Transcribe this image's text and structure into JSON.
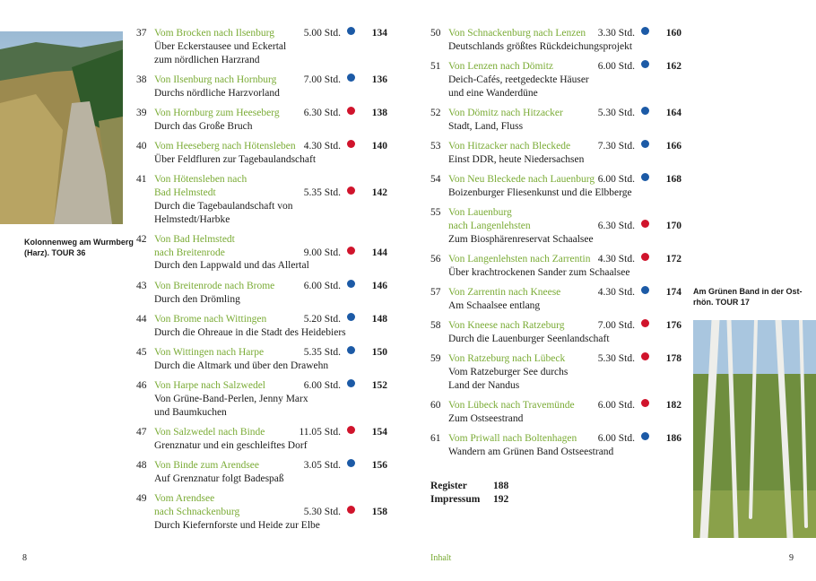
{
  "left_caption": [
    "Kolonnenweg am Wurmberg",
    "(Harz). TOUR 36"
  ],
  "right_caption": [
    "Am Grünen Band in der Ost-",
    "rhön. TOUR 17"
  ],
  "left_column": [
    {
      "number": "37",
      "title": [
        "Vom Brocken nach Ilsenburg"
      ],
      "duration": "5.00 Std.",
      "dot": "#1c5aa6",
      "page": "134",
      "description": [
        "Über Eckerstausee und Eckertal",
        "zum nördlichen Harzrand"
      ]
    },
    {
      "number": "38",
      "title": [
        "Von Ilsenburg nach Hornburg"
      ],
      "duration": "7.00 Std.",
      "dot": "#1c5aa6",
      "page": "136",
      "description": [
        "Durchs nördliche Harzvorland"
      ]
    },
    {
      "number": "39",
      "title": [
        "Von Hornburg zum Heeseberg"
      ],
      "duration": "6.30 Std.",
      "dot": "#d0142c",
      "page": "138",
      "description": [
        "Durch das Große Bruch"
      ]
    },
    {
      "number": "40",
      "title": [
        "Vom Heeseberg nach Hötensleben"
      ],
      "duration": "4.30 Std.",
      "dot": "#d0142c",
      "page": "140",
      "description": [
        "Über Feldfluren zur Tagebaulandschaft"
      ]
    },
    {
      "number": "41",
      "title": [
        "Von Hötensleben nach",
        "Bad Helmstedt"
      ],
      "duration": "5.35 Std.",
      "dot": "#d0142c",
      "page": "142",
      "description": [
        "Durch die Tagebaulandschaft von",
        "Helmstedt/Harbke"
      ]
    },
    {
      "number": "42",
      "title": [
        "Von Bad Helmstedt",
        "nach Breitenrode"
      ],
      "duration": "9.00 Std.",
      "dot": "#d0142c",
      "page": "144",
      "description": [
        "Durch den Lappwald und das Allertal"
      ]
    },
    {
      "number": "43",
      "title": [
        "Von Breitenrode nach Brome"
      ],
      "duration": "6.00 Std.",
      "dot": "#1c5aa6",
      "page": "146",
      "description": [
        "Durch den Drömling"
      ]
    },
    {
      "number": "44",
      "title": [
        "Von Brome nach Wittingen"
      ],
      "duration": "5.20 Std.",
      "dot": "#1c5aa6",
      "page": "148",
      "description": [
        "Durch die Ohreaue in die Stadt des Heidebiers"
      ]
    },
    {
      "number": "45",
      "title": [
        "Von Wittingen nach Harpe"
      ],
      "duration": "5.35 Std.",
      "dot": "#1c5aa6",
      "page": "150",
      "description": [
        "Durch die Altmark und über den Drawehn"
      ]
    },
    {
      "number": "46",
      "title": [
        "Von Harpe nach Salzwedel"
      ],
      "duration": "6.00 Std.",
      "dot": "#1c5aa6",
      "page": "152",
      "description": [
        "Von Grüne-Band-Perlen, Jenny Marx",
        "und Baumkuchen"
      ]
    },
    {
      "number": "47",
      "title": [
        "Von Salzwedel nach Binde"
      ],
      "duration": "11.05 Std.",
      "dot": "#d0142c",
      "page": "154",
      "description": [
        "Grenznatur und ein geschleiftes Dorf"
      ]
    },
    {
      "number": "48",
      "title": [
        "Von Binde zum Arendsee"
      ],
      "duration": "3.05 Std.",
      "dot": "#1c5aa6",
      "page": "156",
      "description": [
        "Auf Grenznatur folgt Badespaß"
      ]
    },
    {
      "number": "49",
      "title": [
        "Vom Arendsee",
        "nach Schnackenburg"
      ],
      "duration": "5.30 Std.",
      "dot": "#d0142c",
      "page": "158",
      "description": [
        "Durch Kiefernforste und Heide zur Elbe"
      ]
    }
  ],
  "right_column": [
    {
      "number": "50",
      "title": [
        "Von Schnackenburg nach Lenzen"
      ],
      "duration": "3.30 Std.",
      "dot": "#1c5aa6",
      "page": "160",
      "description": [
        "Deutschlands größtes Rückdeichungsprojekt"
      ]
    },
    {
      "number": "51",
      "title": [
        "Von Lenzen nach Dömitz"
      ],
      "duration": "6.00 Std.",
      "dot": "#1c5aa6",
      "page": "162",
      "description": [
        "Deich-Cafés, reetgedeckte Häuser",
        "und eine Wanderdüne"
      ]
    },
    {
      "number": "52",
      "title": [
        "Von Dömitz nach Hitzacker"
      ],
      "duration": "5.30 Std.",
      "dot": "#1c5aa6",
      "page": "164",
      "description": [
        "Stadt, Land, Fluss"
      ]
    },
    {
      "number": "53",
      "title": [
        "Von Hitzacker nach Bleckede"
      ],
      "duration": "7.30 Std.",
      "dot": "#1c5aa6",
      "page": "166",
      "description": [
        "Einst DDR, heute Niedersachsen"
      ]
    },
    {
      "number": "54",
      "title": [
        "Von Neu Bleckede nach Lauenburg"
      ],
      "duration": "6.00 Std.",
      "dot": "#1c5aa6",
      "page": "168",
      "description": [
        "Boizenburger Fliesenkunst und die Elbberge"
      ]
    },
    {
      "number": "55",
      "title": [
        "Von Lauenburg",
        "nach Langenlehsten"
      ],
      "duration": "6.30 Std.",
      "dot": "#d0142c",
      "page": "170",
      "description": [
        "Zum Biosphärenreservat Schaalsee"
      ]
    },
    {
      "number": "56",
      "title": [
        "Von Langenlehsten nach Zarrentin"
      ],
      "duration": "4.30 Std.",
      "dot": "#d0142c",
      "page": "172",
      "description": [
        "Über krachtrockenen Sander zum Schaalsee"
      ]
    },
    {
      "number": "57",
      "title": [
        "Von Zarrentin nach Kneese"
      ],
      "duration": "4.30 Std.",
      "dot": "#1c5aa6",
      "page": "174",
      "description": [
        "Am Schaalsee entlang"
      ]
    },
    {
      "number": "58",
      "title": [
        "Von Kneese nach Ratzeburg"
      ],
      "duration": "7.00 Std.",
      "dot": "#d0142c",
      "page": "176",
      "description": [
        "Durch die Lauenburger Seenlandschaft"
      ]
    },
    {
      "number": "59",
      "title": [
        "Von Ratzeburg nach Lübeck"
      ],
      "duration": "5.30 Std.",
      "dot": "#d0142c",
      "page": "178",
      "description": [
        "Vom Ratzeburger See durchs",
        "Land der Nandus"
      ]
    },
    {
      "number": "60",
      "title": [
        "Von Lübeck nach Travemünde"
      ],
      "duration": "6.00 Std.",
      "dot": "#d0142c",
      "page": "182",
      "description": [
        "Zum Ostseestrand"
      ]
    },
    {
      "number": "61",
      "title": [
        "Vom Priwall nach Boltenhagen"
      ],
      "duration": "6.00 Std.",
      "dot": "#1c5aa6",
      "page": "186",
      "description": [
        "Wandern am Grünen Band Ostseestrand"
      ]
    }
  ],
  "appendix": [
    {
      "label": "Register",
      "page": "188"
    },
    {
      "label": "Impressum",
      "page": "192"
    }
  ],
  "footer": {
    "left_page": "8",
    "section": "Inhalt",
    "right_page": "9"
  }
}
